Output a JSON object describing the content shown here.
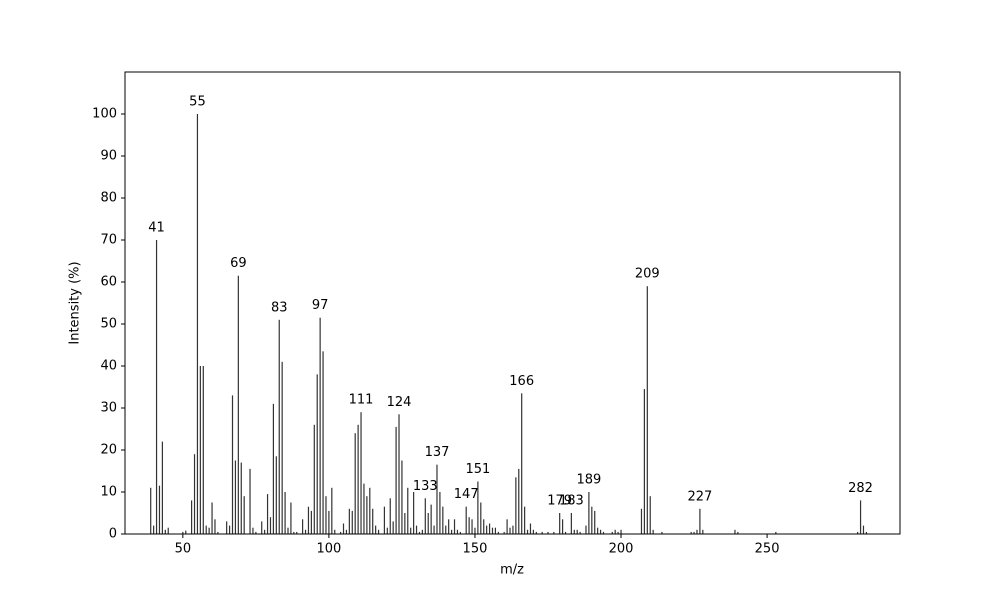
{
  "chart_data": {
    "type": "bar",
    "xlabel": "m/z",
    "ylabel": "Intensity (%)",
    "color": "#333333",
    "x": [
      39,
      40,
      41,
      42,
      43,
      44,
      45,
      50,
      51,
      53,
      54,
      55,
      56,
      57,
      58,
      59,
      60,
      61,
      62,
      65,
      66,
      67,
      68,
      69,
      70,
      71,
      73,
      74,
      75,
      77,
      78,
      79,
      80,
      81,
      82,
      83,
      84,
      85,
      86,
      87,
      88,
      89,
      91,
      92,
      93,
      94,
      95,
      96,
      97,
      98,
      99,
      100,
      101,
      102,
      104,
      105,
      106,
      107,
      108,
      109,
      110,
      111,
      112,
      113,
      114,
      115,
      116,
      117,
      119,
      120,
      121,
      122,
      123,
      124,
      125,
      126,
      127,
      128,
      129,
      130,
      131,
      132,
      133,
      134,
      135,
      136,
      137,
      138,
      139,
      140,
      141,
      142,
      143,
      144,
      145,
      147,
      148,
      149,
      150,
      151,
      152,
      153,
      154,
      155,
      156,
      157,
      158,
      160,
      161,
      162,
      163,
      164,
      165,
      166,
      167,
      168,
      169,
      170,
      171,
      173,
      175,
      177,
      179,
      180,
      181,
      183,
      184,
      185,
      186,
      188,
      189,
      190,
      191,
      192,
      193,
      194,
      197,
      198,
      199,
      200,
      207,
      208,
      209,
      210,
      211,
      214,
      224,
      225,
      226,
      227,
      228,
      239,
      240,
      253,
      281,
      282,
      283,
      284
    ],
    "values": [
      11,
      2,
      70,
      11.5,
      22,
      1,
      1.5,
      0.5,
      0.8,
      8,
      19,
      100,
      40,
      40,
      2,
      1.5,
      7.5,
      3.5,
      0.5,
      3,
      2,
      33,
      17.5,
      61.5,
      17,
      9,
      15.5,
      1.5,
      0.5,
      3,
      1,
      9.5,
      4,
      31,
      18.5,
      51,
      41,
      10,
      1.5,
      7.5,
      0.5,
      0.5,
      3.5,
      1,
      6.5,
      5.5,
      26,
      38,
      51.5,
      43.5,
      9,
      5.5,
      11,
      1,
      0.5,
      2.5,
      1,
      6,
      5.5,
      24,
      26,
      29,
      12,
      9,
      11,
      6,
      2,
      1,
      6.5,
      1.5,
      8.5,
      3,
      25.5,
      28.5,
      17.5,
      5,
      11,
      1.5,
      10,
      2,
      0.5,
      1,
      8.5,
      5,
      7,
      2,
      16.5,
      10,
      6.5,
      2,
      3.5,
      1,
      3.5,
      1,
      0.5,
      6.5,
      4,
      3.5,
      1.5,
      12.5,
      7.5,
      3.5,
      2,
      2.5,
      1.5,
      1.5,
      0.5,
      0.5,
      3.5,
      1.5,
      2,
      13.5,
      15.5,
      33.5,
      6.5,
      1,
      2.5,
      1,
      0.5,
      0.5,
      0.5,
      0.5,
      5,
      3.5,
      0.5,
      5,
      1,
      1,
      0.5,
      2,
      10,
      6.5,
      5.5,
      1.5,
      1,
      0.5,
      0.5,
      1,
      0.5,
      1,
      6,
      34.5,
      59,
      9,
      1,
      0.5,
      0.5,
      0.5,
      1,
      6,
      1,
      1,
      0.5,
      0.5,
      0.5,
      8,
      2,
      0.5
    ],
    "peak_labels": [
      41,
      55,
      69,
      83,
      97,
      111,
      124,
      133,
      137,
      147,
      151,
      166,
      179,
      183,
      189,
      209,
      227,
      282
    ],
    "xlim": [
      30.2,
      295.5
    ],
    "ylim": [
      0,
      110
    ],
    "xticks": [
      50,
      100,
      150,
      200,
      250
    ],
    "yticks": [
      0,
      10,
      20,
      30,
      40,
      50,
      60,
      70,
      80,
      90,
      100
    ]
  }
}
